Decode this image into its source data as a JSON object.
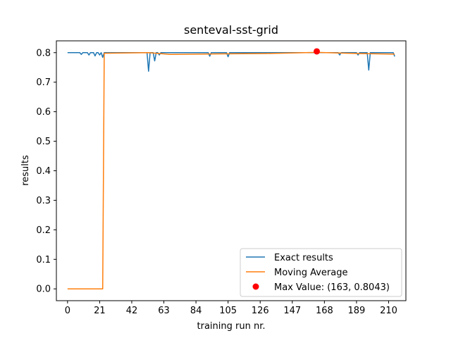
{
  "chart_data": {
    "type": "line",
    "title": "senteval-sst-grid",
    "xlabel": "training run nr.",
    "ylabel": "results",
    "xlim": [
      -7.3,
      221.3
    ],
    "ylim": [
      -0.04,
      0.84
    ],
    "x_ticks": [
      0,
      21,
      42,
      63,
      84,
      105,
      126,
      147,
      168,
      189,
      210
    ],
    "y_ticks": [
      0.0,
      0.1,
      0.2,
      0.3,
      0.4,
      0.5,
      0.6,
      0.7,
      0.8
    ],
    "y_tick_labels": [
      "0.0",
      "0.1",
      "0.2",
      "0.3",
      "0.4",
      "0.5",
      "0.6",
      "0.7",
      "0.8"
    ],
    "grid": false,
    "legend_position": "lower right",
    "colors": {
      "exact": "#1f77b4",
      "moving": "#ff7f0e",
      "max": "#ff0000"
    },
    "series": [
      {
        "name": "Exact results",
        "base": 0.8,
        "x_start": 0,
        "x_end": 214,
        "dips": [
          [
            9,
            0.794
          ],
          [
            14,
            0.792
          ],
          [
            18,
            0.789
          ],
          [
            21,
            0.792
          ],
          [
            23,
            0.784
          ],
          [
            53,
            0.737
          ],
          [
            57,
            0.772
          ],
          [
            60,
            0.792
          ],
          [
            93,
            0.788
          ],
          [
            105,
            0.786
          ],
          [
            178,
            0.792
          ],
          [
            190,
            0.792
          ],
          [
            197,
            0.741
          ],
          [
            214,
            0.787
          ]
        ]
      },
      {
        "name": "Moving Average",
        "points": [
          [
            0,
            0.0
          ],
          [
            23,
            0.0
          ],
          [
            24,
            0.798
          ],
          [
            53,
            0.8
          ],
          [
            67,
            0.794
          ],
          [
            100,
            0.796
          ],
          [
            130,
            0.797
          ],
          [
            163,
            0.801
          ],
          [
            190,
            0.797
          ],
          [
            214,
            0.795
          ]
        ]
      },
      {
        "name": "Max Value: (163, 0.8043)",
        "x": 163,
        "y": 0.8043
      }
    ]
  }
}
